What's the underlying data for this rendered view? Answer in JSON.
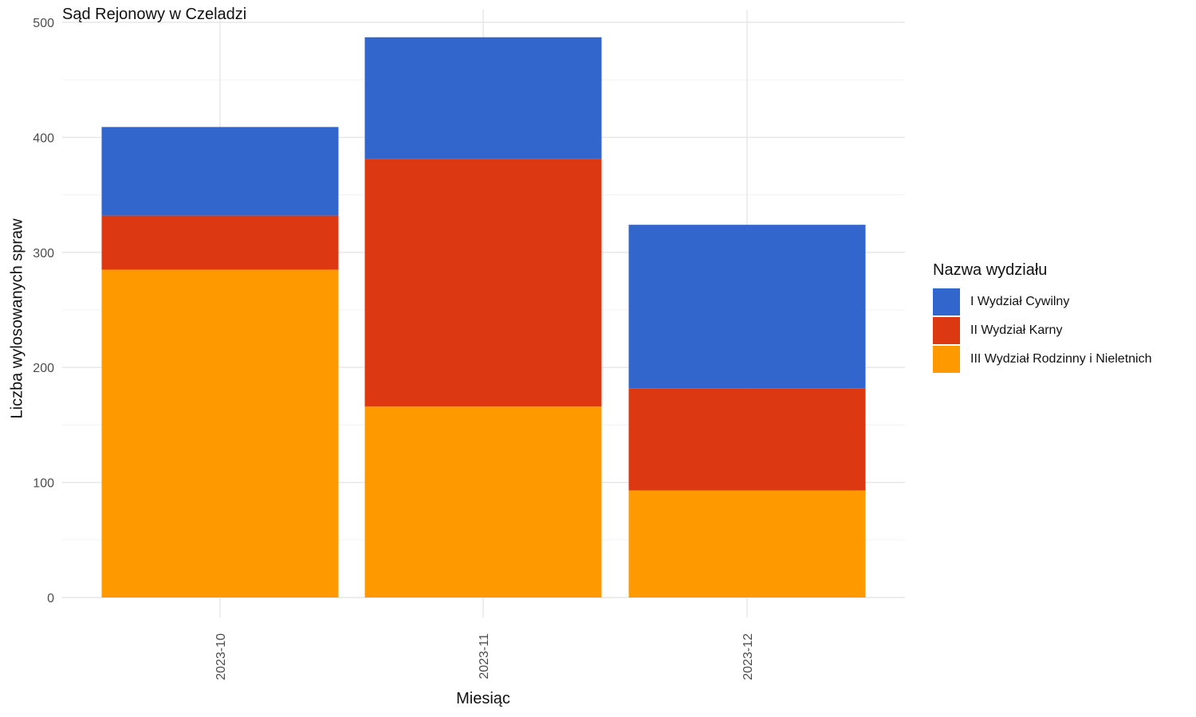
{
  "chart_data": {
    "type": "bar",
    "stacked": true,
    "title": "Sąd Rejonowy w Czeladzi",
    "xlabel": "Miesiąc",
    "ylabel": "Liczba wylosowanych spraw",
    "categories": [
      "2023-10",
      "2023-11",
      "2023-12"
    ],
    "ylim": [
      0,
      500
    ],
    "yticks": [
      0,
      100,
      200,
      300,
      400,
      500
    ],
    "grid": true,
    "legend_title": "Nazwa wydziału",
    "legend_position": "right",
    "series": [
      {
        "name": "III Wydział Rodzinny i Nieletnich",
        "color": "#FF9900",
        "values": [
          285,
          166,
          93
        ]
      },
      {
        "name": "II Wydział Karny",
        "color": "#DC3912",
        "values": [
          47,
          215,
          89
        ]
      },
      {
        "name": "I Wydział Cywilny",
        "color": "#3366CC",
        "values": [
          77,
          106,
          142
        ]
      }
    ],
    "legend_order": [
      "I Wydział Cywilny",
      "II Wydział Karny",
      "III Wydział Rodzinny i Nieletnich"
    ]
  }
}
